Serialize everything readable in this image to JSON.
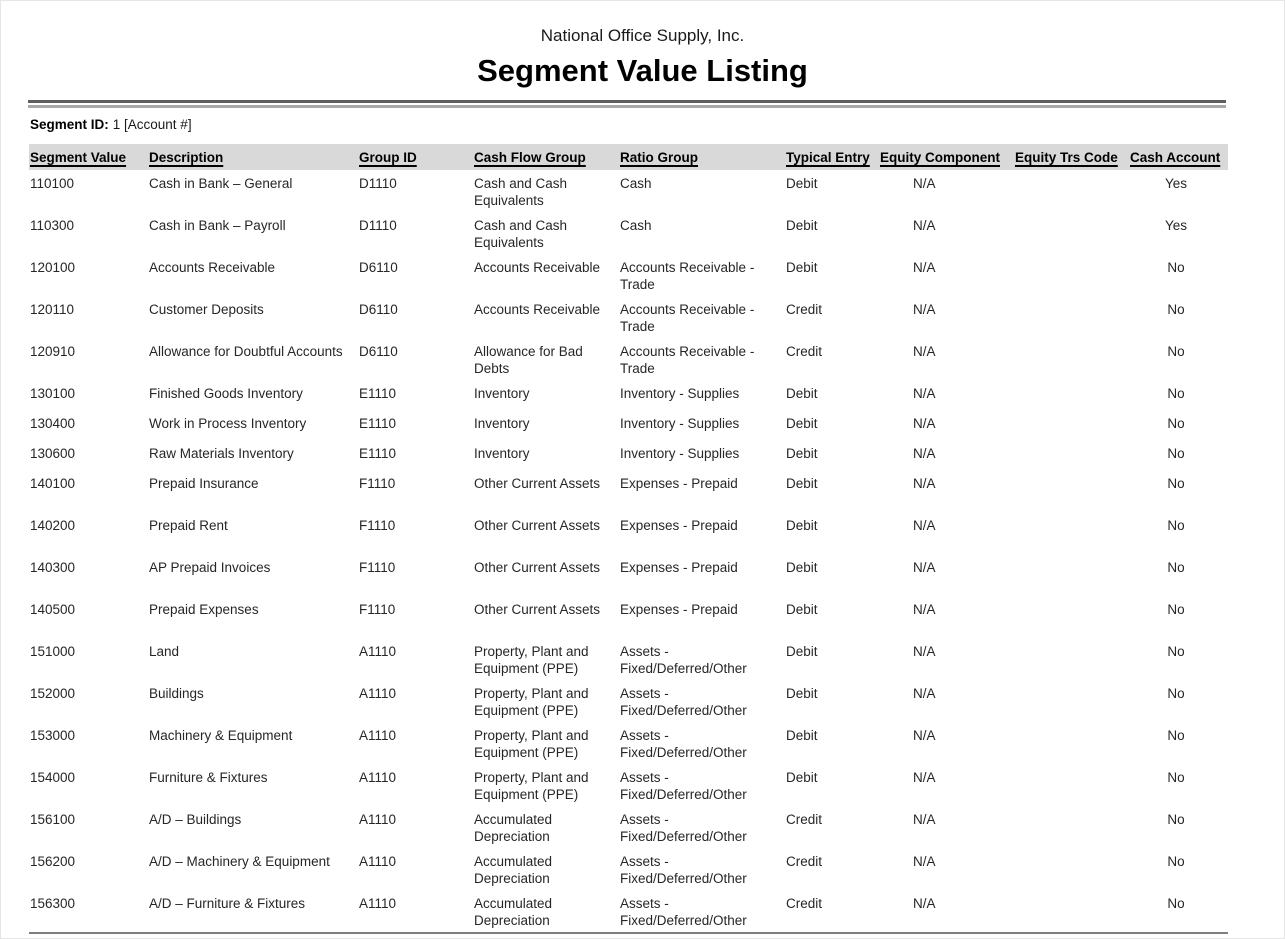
{
  "report": {
    "company": "National Office Supply, Inc.",
    "title": "Segment Value Listing",
    "segment_label": "Segment ID:",
    "segment_value": "1 [Account #]"
  },
  "table": {
    "columns": [
      "Segment Value",
      "Description",
      "Group ID",
      "Cash Flow Group",
      "Ratio Group",
      "Typical Entry",
      "Equity Component",
      "Equity Trs Code",
      "Cash Account"
    ],
    "rows": [
      [
        "110100",
        "Cash in Bank – General",
        "D1110",
        "Cash and Cash Equivalents",
        "Cash",
        "Debit",
        "N/A",
        "",
        "Yes"
      ],
      [
        "110300",
        "Cash in Bank – Payroll",
        "D1110",
        "Cash and Cash Equivalents",
        "Cash",
        "Debit",
        "N/A",
        "",
        "Yes"
      ],
      [
        "120100",
        "Accounts Receivable",
        "D6110",
        "Accounts Receivable",
        "Accounts Receivable - Trade",
        "Debit",
        "N/A",
        "",
        "No"
      ],
      [
        "120110",
        "Customer Deposits",
        "D6110",
        "Accounts Receivable",
        "Accounts Receivable - Trade",
        "Credit",
        "N/A",
        "",
        "No"
      ],
      [
        "120910",
        "Allowance for Doubtful Accounts",
        "D6110",
        "Allowance for Bad Debts",
        "Accounts Receivable - Trade",
        "Credit",
        "N/A",
        "",
        "No"
      ],
      [
        "130100",
        "Finished Goods Inventory",
        "E1110",
        "Inventory",
        "Inventory - Supplies",
        "Debit",
        "N/A",
        "",
        "No"
      ],
      [
        "130400",
        "Work in Process Inventory",
        "E1110",
        "Inventory",
        "Inventory - Supplies",
        "Debit",
        "N/A",
        "",
        "No"
      ],
      [
        "130600",
        "Raw Materials Inventory",
        "E1110",
        "Inventory",
        "Inventory - Supplies",
        "Debit",
        "N/A",
        "",
        "No"
      ],
      [
        "140100",
        "Prepaid Insurance",
        "F1110",
        "Other Current Assets",
        "Expenses - Prepaid",
        "Debit",
        "N/A",
        "",
        "No"
      ],
      [
        "140200",
        "Prepaid Rent",
        "F1110",
        "Other Current Assets",
        "Expenses - Prepaid",
        "Debit",
        "N/A",
        "",
        "No"
      ],
      [
        "140300",
        "AP Prepaid Invoices",
        "F1110",
        "Other Current Assets",
        "Expenses - Prepaid",
        "Debit",
        "N/A",
        "",
        "No"
      ],
      [
        "140500",
        "Prepaid Expenses",
        "F1110",
        "Other Current Assets",
        "Expenses - Prepaid",
        "Debit",
        "N/A",
        "",
        "No"
      ],
      [
        "151000",
        "Land",
        "A1110",
        "Property, Plant and Equipment (PPE)",
        "Assets - Fixed/Deferred/Other",
        "Debit",
        "N/A",
        "",
        "No"
      ],
      [
        "152000",
        "Buildings",
        "A1110",
        "Property, Plant and Equipment (PPE)",
        "Assets - Fixed/Deferred/Other",
        "Debit",
        "N/A",
        "",
        "No"
      ],
      [
        "153000",
        "Machinery & Equipment",
        "A1110",
        "Property, Plant and Equipment (PPE)",
        "Assets - Fixed/Deferred/Other",
        "Debit",
        "N/A",
        "",
        "No"
      ],
      [
        "154000",
        "Furniture & Fixtures",
        "A1110",
        "Property, Plant and Equipment (PPE)",
        "Assets - Fixed/Deferred/Other",
        "Debit",
        "N/A",
        "",
        "No"
      ],
      [
        "156100",
        "A/D – Buildings",
        "A1110",
        "Accumulated Depreciation",
        "Assets - Fixed/Deferred/Other",
        "Credit",
        "N/A",
        "",
        "No"
      ],
      [
        "156200",
        "A/D – Machinery & Equipment",
        "A1110",
        "Accumulated Depreciation",
        "Assets - Fixed/Deferred/Other",
        "Credit",
        "N/A",
        "",
        "No"
      ],
      [
        "156300",
        "A/D – Furniture & Fixtures",
        "A1110",
        "Accumulated Depreciation",
        "Assets - Fixed/Deferred/Other",
        "Credit",
        "N/A",
        "",
        "No"
      ]
    ]
  },
  "colors": {
    "header_band": "#d9d9d9",
    "rule_dark": "#5f5f5f",
    "rule_light": "#a8a8a8",
    "rule_bottom": "#7f7f7f"
  }
}
